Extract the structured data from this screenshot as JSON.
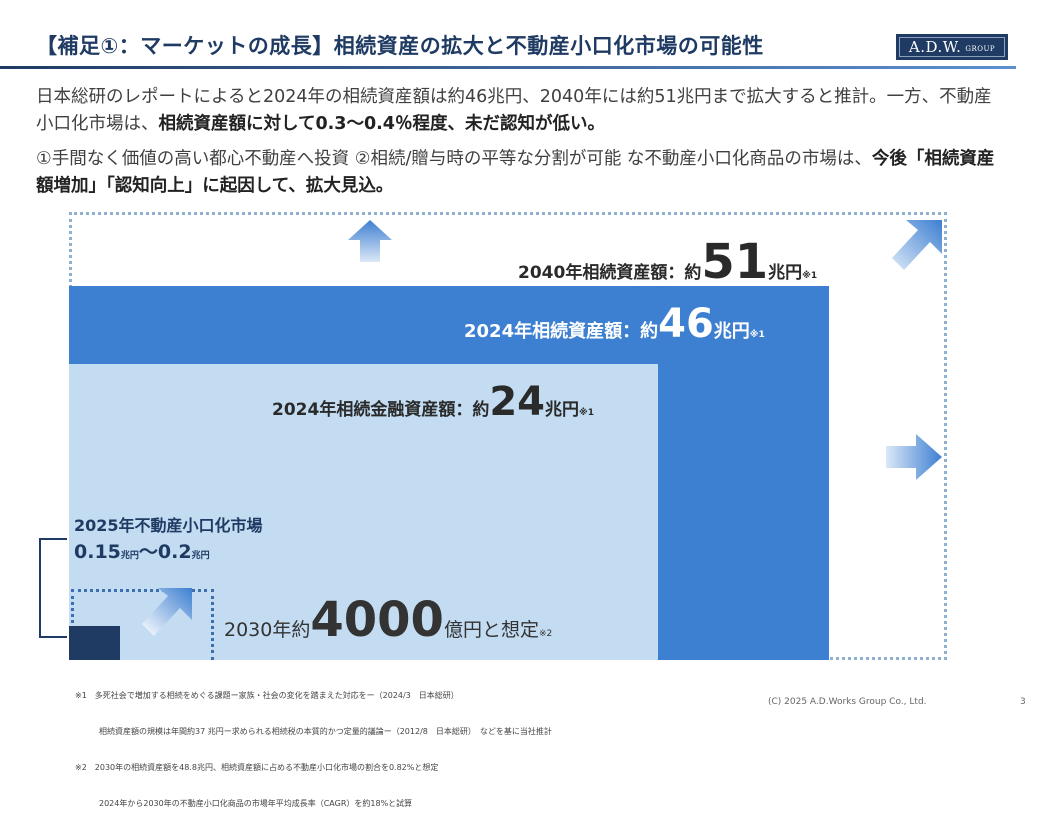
{
  "header": {
    "title": "【補足①：マーケットの成長】相続資産の拡大と不動産小口化市場の可能性",
    "logo": {
      "main": "A.D.W.",
      "sub": "GROUP"
    }
  },
  "intro": {
    "p1_plain1": "日本総研のレポートによると2024年の相続資産額は約46兆円、2040年には約51兆円まで拡大すると推計。一方、不動産小口化市場は、",
    "p1_bold": "相続資産額に対して0.3～0.4％程度、未だ認知が低い。",
    "p2_plain1": "①手間なく価値の高い都心不動産へ投資 ②相続/贈与時の平等な分割が可能 な不動産小口化商品の市場は、",
    "p2_bold": "今後「相続資産額増加」「認知向上」に起因して、拡大見込。"
  },
  "figure": {
    "label_2040": {
      "prefix": "2040年相続資産額：約",
      "value": "51",
      "unit": "兆円",
      "note": "※1"
    },
    "label_2024": {
      "prefix": "2024年相続資産額：約",
      "value": "46",
      "unit": "兆円",
      "note": "※1"
    },
    "label_fin": {
      "prefix": "2024年相続金融資産額：約",
      "value": "24",
      "unit": "兆円",
      "note": "※1"
    },
    "label_2030": {
      "prefix": "2030年約",
      "value": "4000",
      "unit": "億円と想定",
      "note": "※2"
    },
    "market": {
      "title": "2025年不動産小口化市場",
      "low": "0.15",
      "unit1": "兆円",
      "sep": "～",
      "high": "0.2",
      "unit2": "兆円"
    },
    "colors": {
      "outer": "#8fb0cf",
      "rect46": "#3d7fd1",
      "rect24": "#c3dcf2",
      "small": "#1f3b63"
    }
  },
  "footnotes": [
    "※1　多死社会で増加する相続をめぐる課題ー家族・社会の変化を踏まえた対応をー（2024/3　日本総研）",
    "　　　相続資産額の規模は年間約37 兆円ー求められる相続税の本質的かつ定量的議論ー（2012/8　日本総研）　などを基に当社推計",
    "※2　2030年の相続資産額を48.8兆円、相続資産額に占める不動産小口化市場の割合を0.82%と想定",
    "　　　2024年から2030年の不動産小口化商品の市場年平均成長率（CAGR）を約18%と試算"
  ],
  "footer": {
    "copyright": "(C) 2025  A.D.Works Group Co., Ltd.",
    "page": "3"
  }
}
